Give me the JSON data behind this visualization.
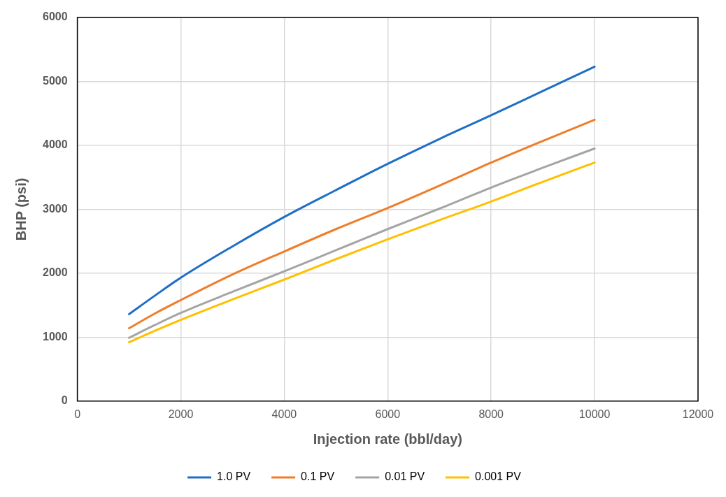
{
  "chart_data": {
    "type": "line",
    "xlabel": "Injection rate (bbl/day)",
    "ylabel": "BHP (psi)",
    "xlim": [
      0,
      12000
    ],
    "xticks": [
      0,
      2000,
      4000,
      6000,
      8000,
      10000,
      12000
    ],
    "ylim": [
      0,
      6000
    ],
    "yticks": [
      0,
      1000,
      2000,
      3000,
      4000,
      5000,
      6000
    ],
    "grid": true,
    "legend": "bottom",
    "marker": "none",
    "line_style": "solid",
    "x": [
      1000,
      1500,
      2000,
      3000,
      4000,
      5000,
      6000,
      7000,
      8000,
      9000,
      10000
    ],
    "series": [
      {
        "name": "1.0 PV",
        "color": "#1f6fc5",
        "values": [
          1360,
          1650,
          1930,
          2420,
          2880,
          3300,
          3710,
          4100,
          4470,
          4850,
          5230
        ]
      },
      {
        "name": "0.1 PV",
        "color": "#f07d2a",
        "values": [
          1140,
          1370,
          1580,
          1980,
          2340,
          2690,
          3020,
          3370,
          3730,
          4070,
          4400
        ]
      },
      {
        "name": "0.01 PV",
        "color": "#a5a5a5",
        "values": [
          990,
          1190,
          1380,
          1710,
          2030,
          2360,
          2690,
          3010,
          3340,
          3650,
          3950
        ]
      },
      {
        "name": "0.001 PV",
        "color": "#ffc000",
        "values": [
          920,
          1100,
          1270,
          1590,
          1900,
          2220,
          2530,
          2830,
          3120,
          3430,
          3730
        ]
      }
    ]
  }
}
